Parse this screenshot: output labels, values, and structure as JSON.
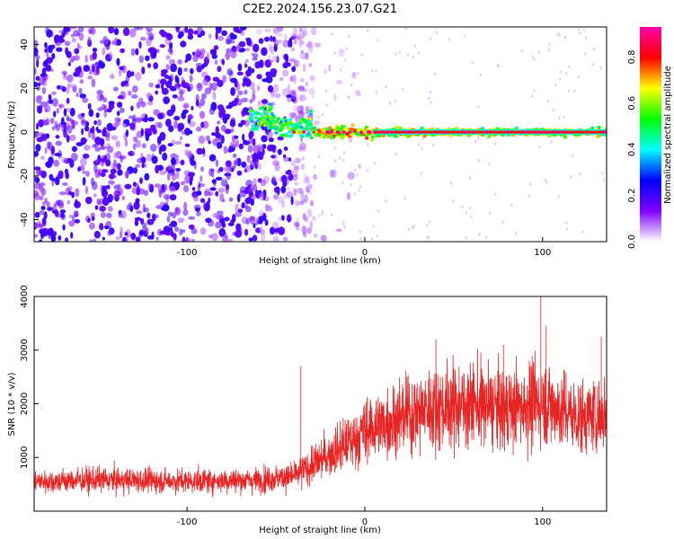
{
  "title": "C2E2.2024.156.23.07.G21",
  "chart_data": [
    {
      "type": "heatmap",
      "xlabel": "Height of straight line (km)",
      "ylabel": "Frequency (Hz)",
      "xlim": [
        -186,
        136
      ],
      "ylim": [
        -50,
        48
      ],
      "xticks": [
        -100,
        0,
        100
      ],
      "yticks": [
        -40,
        -20,
        0,
        20,
        40
      ],
      "colorbar": {
        "label": "Normalized spectral amplitude",
        "range": [
          0.0,
          0.93
        ],
        "ticks": [
          0.0,
          0.2,
          0.4,
          0.6,
          0.8
        ],
        "colormap": [
          "#ffffff",
          "#7f00ff",
          "#0000ff",
          "#00ffff",
          "#00ff00",
          "#ffff00",
          "#ff0000",
          "#ff00aa"
        ]
      },
      "features": {
        "noise_region_x": [
          -186,
          -30
        ],
        "signal_band_x": [
          -65,
          136
        ],
        "signal_band_center_hz": 0,
        "strong_core_x": [
          5,
          136
        ]
      }
    },
    {
      "type": "line",
      "xlabel": "Height of straight line (km)",
      "ylabel": "SNR (10 * v/v)",
      "xlim": [
        -186,
        136
      ],
      "ylim": [
        0,
        4000
      ],
      "xticks": [
        -100,
        0,
        100
      ],
      "yticks": [
        1000,
        2000,
        3000,
        4000
      ],
      "color": "#e82525",
      "trend": {
        "x": [
          -186,
          -150,
          -100,
          -60,
          -40,
          -30,
          -20,
          -10,
          0,
          20,
          40,
          60,
          80,
          100,
          120,
          136
        ],
        "y": [
          550,
          580,
          560,
          580,
          650,
          850,
          1050,
          1250,
          1500,
          1750,
          1950,
          2000,
          1900,
          2050,
          1750,
          1800
        ]
      },
      "spikes": [
        {
          "x": -36,
          "y": 2700
        },
        {
          "x": 99,
          "y": 4000
        },
        {
          "x": 102,
          "y": 3450
        },
        {
          "x": 133,
          "y": 3250
        },
        {
          "x": 40,
          "y": 3200
        },
        {
          "x": 78,
          "y": 3100
        }
      ]
    }
  ]
}
